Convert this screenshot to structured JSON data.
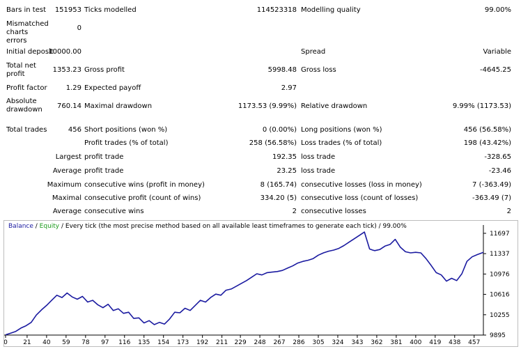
{
  "report": {
    "bars_in_test_label": "Bars in test",
    "bars_in_test_value": "151953",
    "ticks_modelled_label": "Ticks modelled",
    "ticks_modelled_value": "114523318",
    "modelling_quality_label": "Modelling quality",
    "modelling_quality_value": "99.00%",
    "mismatched_label": "Mismatched charts errors",
    "mismatched_value": "0",
    "initial_deposit_label": "Initial deposit",
    "initial_deposit_value": "10000.00",
    "spread_label": "Spread",
    "spread_value": "Variable",
    "total_net_profit_label": "Total net profit",
    "total_net_profit_value": "1353.23",
    "gross_profit_label": "Gross profit",
    "gross_profit_value": "5998.48",
    "gross_loss_label": "Gross loss",
    "gross_loss_value": "-4645.25",
    "profit_factor_label": "Profit factor",
    "profit_factor_value": "1.29",
    "expected_payoff_label": "Expected payoff",
    "expected_payoff_value": "2.97",
    "absolute_drawdown_label": "Absolute drawdown",
    "absolute_drawdown_value": "760.14",
    "maximal_drawdown_label": "Maximal drawdown",
    "maximal_drawdown_value": "1173.53 (9.99%)",
    "relative_drawdown_label": "Relative drawdown",
    "relative_drawdown_value": "9.99% (1173.53)",
    "total_trades_label": "Total trades",
    "total_trades_value": "456",
    "short_positions_label": "Short positions (won %)",
    "short_positions_value": "0 (0.00%)",
    "long_positions_label": "Long positions (won %)",
    "long_positions_value": "456 (56.58%)",
    "profit_trades_label": "Profit trades (% of total)",
    "profit_trades_value": "258 (56.58%)",
    "loss_trades_label": "Loss trades (% of total)",
    "loss_trades_value": "198 (43.42%)",
    "largest_label": "Largest",
    "largest_profit_label": "profit trade",
    "largest_profit_value": "192.35",
    "largest_loss_label": "loss trade",
    "largest_loss_value": "-328.65",
    "average_label": "Average",
    "average_profit_label": "profit trade",
    "average_profit_value": "23.25",
    "average_loss_label": "loss trade",
    "average_loss_value": "-23.46",
    "maximum_label": "Maximum",
    "max_cons_wins_label": "consecutive wins (profit in money)",
    "max_cons_wins_value": "8 (165.74)",
    "max_cons_losses_label": "consecutive losses (loss in money)",
    "max_cons_losses_value": "7 (-363.49)",
    "maximal_label": "Maximal",
    "maximal_cons_profit_label": "consecutive profit (count of wins)",
    "maximal_cons_profit_value": "334.20 (5)",
    "maximal_cons_loss_label": "consecutive loss (count of losses)",
    "maximal_cons_loss_value": "-363.49 (7)",
    "average2_label": "Average",
    "avg_cons_wins_label": "consecutive wins",
    "avg_cons_wins_value": "2",
    "avg_cons_losses_label": "consecutive losses",
    "avg_cons_losses_value": "2"
  },
  "chart_legend": {
    "balance": "Balance",
    "sep1": " / ",
    "equity": "Equity",
    "rest": " / Every tick (the most precise method based on all available least timeframes to generate each tick) / 99.00%"
  },
  "chart_data": {
    "type": "line",
    "x_ticks": [
      "0",
      "21",
      "40",
      "59",
      "78",
      "97",
      "116",
      "135",
      "154",
      "173",
      "192",
      "211",
      "229",
      "248",
      "267",
      "286",
      "305",
      "324",
      "343",
      "362",
      "381",
      "400",
      "419",
      "438",
      "457"
    ],
    "y_ticks": [
      "9895",
      "10255",
      "10616",
      "10976",
      "11337",
      "11697"
    ],
    "ylim": [
      9895,
      11770
    ],
    "xlim": [
      0,
      466
    ],
    "series": [
      {
        "name": "Balance",
        "color": "#1a1aa0",
        "x": [
          0,
          5,
          10,
          15,
          20,
          25,
          30,
          35,
          40,
          45,
          50,
          55,
          60,
          65,
          70,
          75,
          80,
          85,
          90,
          95,
          100,
          105,
          110,
          115,
          120,
          125,
          130,
          135,
          140,
          145,
          150,
          155,
          160,
          165,
          170,
          175,
          180,
          185,
          190,
          195,
          200,
          205,
          210,
          215,
          220,
          225,
          230,
          235,
          240,
          245,
          250,
          255,
          260,
          265,
          270,
          275,
          280,
          285,
          290,
          295,
          300,
          305,
          310,
          315,
          320,
          325,
          330,
          335,
          340,
          345,
          350,
          355,
          358,
          360,
          365,
          370,
          375,
          380,
          385,
          390,
          395,
          400,
          405,
          410,
          415,
          420,
          425,
          430,
          435,
          440,
          445,
          450,
          455,
          460,
          466
        ],
        "values": [
          9900,
          9930,
          9960,
          10020,
          10060,
          10120,
          10250,
          10340,
          10420,
          10510,
          10600,
          10560,
          10640,
          10570,
          10530,
          10580,
          10480,
          10510,
          10430,
          10380,
          10440,
          10330,
          10360,
          10280,
          10300,
          10190,
          10200,
          10110,
          10150,
          10080,
          10120,
          10090,
          10180,
          10300,
          10290,
          10370,
          10330,
          10420,
          10510,
          10480,
          10560,
          10620,
          10600,
          10690,
          10710,
          10760,
          10810,
          10860,
          10920,
          10980,
          10960,
          11000,
          11010,
          11020,
          11040,
          11080,
          11120,
          11170,
          11200,
          11220,
          11250,
          11310,
          11350,
          11380,
          11400,
          11430,
          11480,
          11540,
          11600,
          11660,
          11720,
          11420,
          11400,
          11390,
          11410,
          11470,
          11500,
          11590,
          11450,
          11370,
          11350,
          11360,
          11350,
          11250,
          11130,
          11000,
          10960,
          10850,
          10900,
          10860,
          10980,
          11200,
          11280,
          11320,
          11360
        ]
      }
    ]
  }
}
